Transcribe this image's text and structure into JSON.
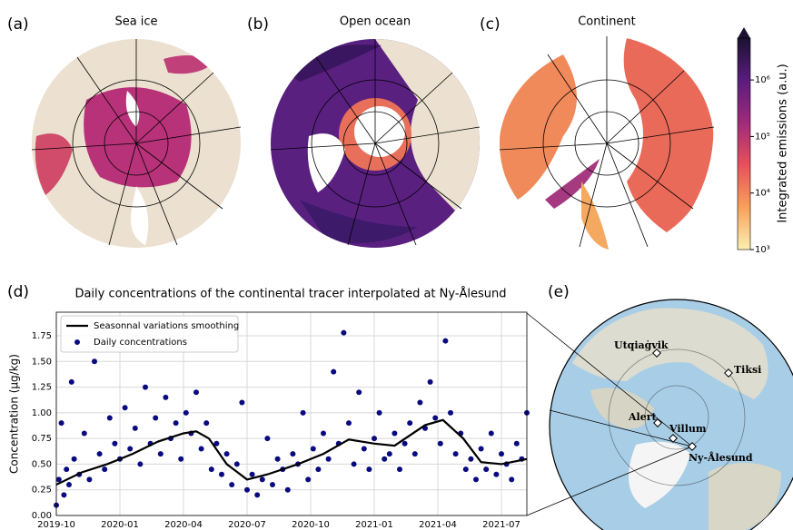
{
  "panels": [
    {
      "label": "(a)",
      "title": "Sea ice"
    },
    {
      "label": "(b)",
      "title": "Open ocean"
    },
    {
      "label": "(c)",
      "title": "Continent"
    }
  ],
  "colorbar": {
    "label": "Integrated emissions (a.u.)",
    "log": true,
    "clim": [
      1000,
      5500000
    ],
    "ticks": [
      {
        "value": 1000,
        "label": "10³"
      },
      {
        "value": 10000,
        "label": "10⁴"
      },
      {
        "value": 100000,
        "label": "10⁵"
      },
      {
        "value": 1000000,
        "label": "10⁶"
      }
    ],
    "colors": [
      "#fcefb0",
      "#f7a15a",
      "#e8505b",
      "#a02a7a",
      "#5a1c7e",
      "#1a1230"
    ]
  },
  "chart_data": {
    "type": "scatter",
    "label": "(d)",
    "title": "Daily concentrations of the continental tracer interpolated at Ny-Ålesund",
    "y_label": "Concentration (µg/kg)",
    "xlim": [
      2019.75,
      2021.6
    ],
    "ylim": [
      0,
      1.98
    ],
    "grid": true,
    "legend": "upper-left",
    "xticks": [
      {
        "value": 2019.75,
        "label": "2019-10"
      },
      {
        "value": 2020,
        "label": "2020-01"
      },
      {
        "value": 2020.25,
        "label": "2020-04"
      },
      {
        "value": 2020.5,
        "label": "2020-07"
      },
      {
        "value": 2020.75,
        "label": "2020-10"
      },
      {
        "value": 2021,
        "label": "2021-01"
      },
      {
        "value": 2021.25,
        "label": "2021-04"
      },
      {
        "value": 2021.5,
        "label": "2021-07"
      }
    ],
    "yticks": [
      {
        "value": 0,
        "label": "0.00"
      },
      {
        "value": 0.25,
        "label": "0.25"
      },
      {
        "value": 0.5,
        "label": "0.50"
      },
      {
        "value": 0.75,
        "label": "0.75"
      },
      {
        "value": 1,
        "label": "1.00"
      },
      {
        "value": 1.25,
        "label": "1.25"
      },
      {
        "value": 1.5,
        "label": "1.50"
      },
      {
        "value": 1.75,
        "label": "1.75"
      }
    ],
    "series": [
      {
        "name": "Seasonnal variations smoothing",
        "kind": "line",
        "color": "#000000",
        "x": [
          2019.75,
          2019.85,
          2019.95,
          2020.05,
          2020.15,
          2020.25,
          2020.3,
          2020.35,
          2020.42,
          2020.5,
          2020.58,
          2020.7,
          2020.8,
          2020.9,
          2021,
          2021.08,
          2021.2,
          2021.27,
          2021.35,
          2021.42,
          2021.5,
          2021.6
        ],
        "values": [
          0.3,
          0.42,
          0.5,
          0.6,
          0.72,
          0.8,
          0.82,
          0.75,
          0.5,
          0.35,
          0.4,
          0.5,
          0.6,
          0.74,
          0.7,
          0.68,
          0.88,
          0.93,
          0.75,
          0.52,
          0.5,
          0.55
        ]
      },
      {
        "name": "Daily concentrations",
        "kind": "points",
        "color": "#0a0a80",
        "x": [
          2019.75,
          2019.76,
          2019.77,
          2019.78,
          2019.79,
          2019.8,
          2019.81,
          2019.82,
          2019.84,
          2019.86,
          2019.88,
          2019.9,
          2019.92,
          2019.94,
          2019.96,
          2019.98,
          2020,
          2020.02,
          2020.04,
          2020.06,
          2020.08,
          2020.1,
          2020.12,
          2020.14,
          2020.16,
          2020.18,
          2020.2,
          2020.22,
          2020.24,
          2020.26,
          2020.28,
          2020.3,
          2020.32,
          2020.34,
          2020.36,
          2020.38,
          2020.4,
          2020.42,
          2020.44,
          2020.46,
          2020.48,
          2020.5,
          2020.52,
          2020.54,
          2020.56,
          2020.58,
          2020.6,
          2020.62,
          2020.64,
          2020.66,
          2020.68,
          2020.7,
          2020.72,
          2020.74,
          2020.76,
          2020.78,
          2020.8,
          2020.82,
          2020.84,
          2020.86,
          2020.88,
          2020.9,
          2020.92,
          2020.94,
          2020.96,
          2020.98,
          2021,
          2021.02,
          2021.04,
          2021.06,
          2021.08,
          2021.1,
          2021.12,
          2021.14,
          2021.16,
          2021.18,
          2021.2,
          2021.22,
          2021.24,
          2021.26,
          2021.28,
          2021.3,
          2021.32,
          2021.34,
          2021.36,
          2021.38,
          2021.4,
          2021.42,
          2021.44,
          2021.46,
          2021.48,
          2021.5,
          2021.52,
          2021.54,
          2021.56,
          2021.58,
          2021.6
        ],
        "values": [
          0.1,
          0.35,
          0.9,
          0.2,
          0.45,
          0.3,
          1.3,
          0.55,
          0.4,
          0.8,
          0.35,
          1.5,
          0.6,
          0.45,
          0.95,
          0.7,
          0.55,
          1.05,
          0.65,
          0.85,
          0.5,
          1.25,
          0.7,
          0.95,
          0.6,
          1.15,
          0.75,
          0.9,
          0.55,
          1.0,
          0.8,
          1.2,
          0.65,
          0.9,
          0.45,
          0.7,
          0.4,
          0.6,
          0.3,
          0.5,
          1.1,
          0.25,
          0.4,
          0.2,
          0.35,
          0.75,
          0.3,
          0.55,
          0.45,
          0.25,
          0.6,
          0.5,
          1.0,
          0.35,
          0.65,
          0.45,
          0.8,
          0.55,
          1.4,
          0.7,
          1.78,
          0.9,
          0.5,
          1.2,
          0.65,
          0.45,
          0.75,
          1.0,
          0.55,
          0.6,
          0.8,
          0.45,
          0.7,
          0.9,
          0.6,
          1.1,
          0.85,
          1.3,
          0.95,
          0.7,
          1.7,
          1.0,
          0.6,
          0.8,
          0.45,
          0.55,
          0.35,
          0.65,
          0.45,
          0.8,
          0.4,
          0.6,
          0.5,
          0.35,
          0.7,
          0.55,
          1.0
        ]
      }
    ]
  },
  "map_e": {
    "label": "(e)",
    "stations": [
      "Utqiaġvik",
      "Tiksi",
      "Alert",
      "Villum",
      "Ny-Ålesund"
    ]
  }
}
